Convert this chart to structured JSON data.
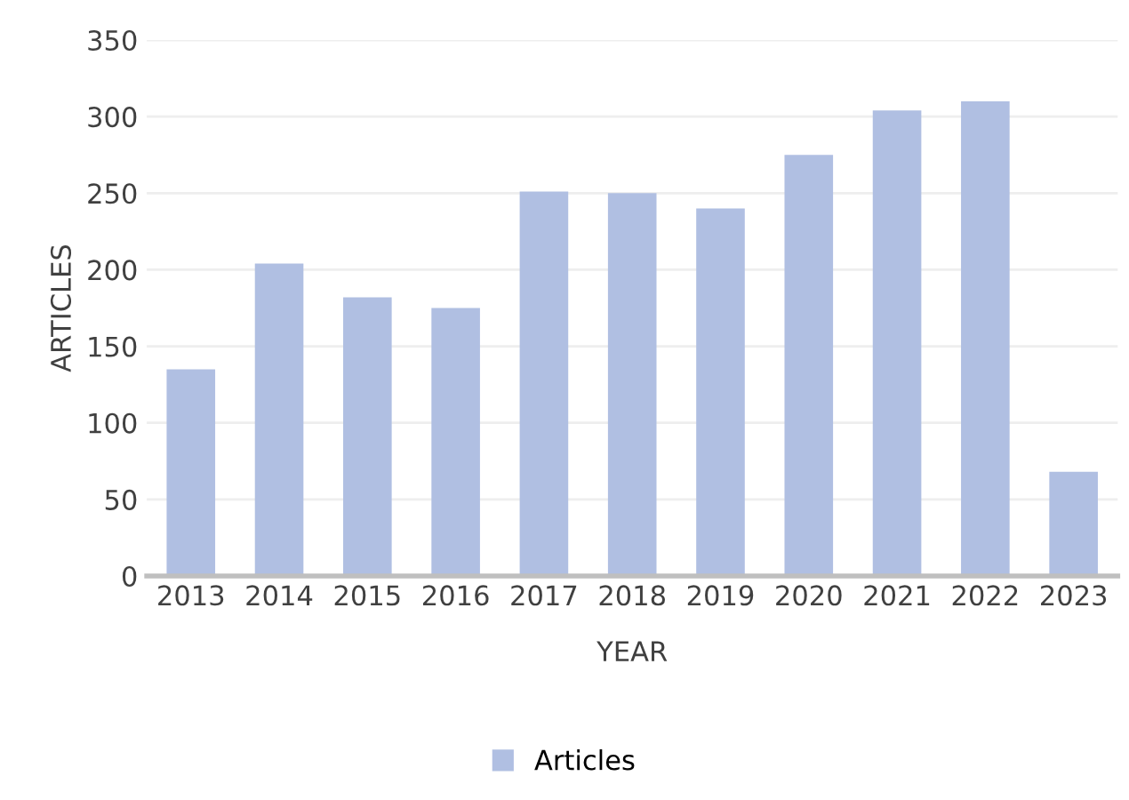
{
  "chart_data": {
    "type": "bar",
    "xlabel": "YEAR",
    "ylabel": "ARTICLES",
    "categories": [
      "2013",
      "2014",
      "2015",
      "2016",
      "2017",
      "2018",
      "2019",
      "2020",
      "2021",
      "2022",
      "2023"
    ],
    "series": [
      {
        "name": "Articles",
        "color": "#b0bfe2",
        "values": [
          135,
          204,
          182,
          175,
          251,
          250,
          240,
          275,
          304,
          310,
          68
        ]
      }
    ],
    "ylim": [
      0,
      350
    ],
    "yticks": [
      0,
      50,
      100,
      150,
      200,
      250,
      300,
      350
    ],
    "grid": "y",
    "legend": "bottom"
  }
}
